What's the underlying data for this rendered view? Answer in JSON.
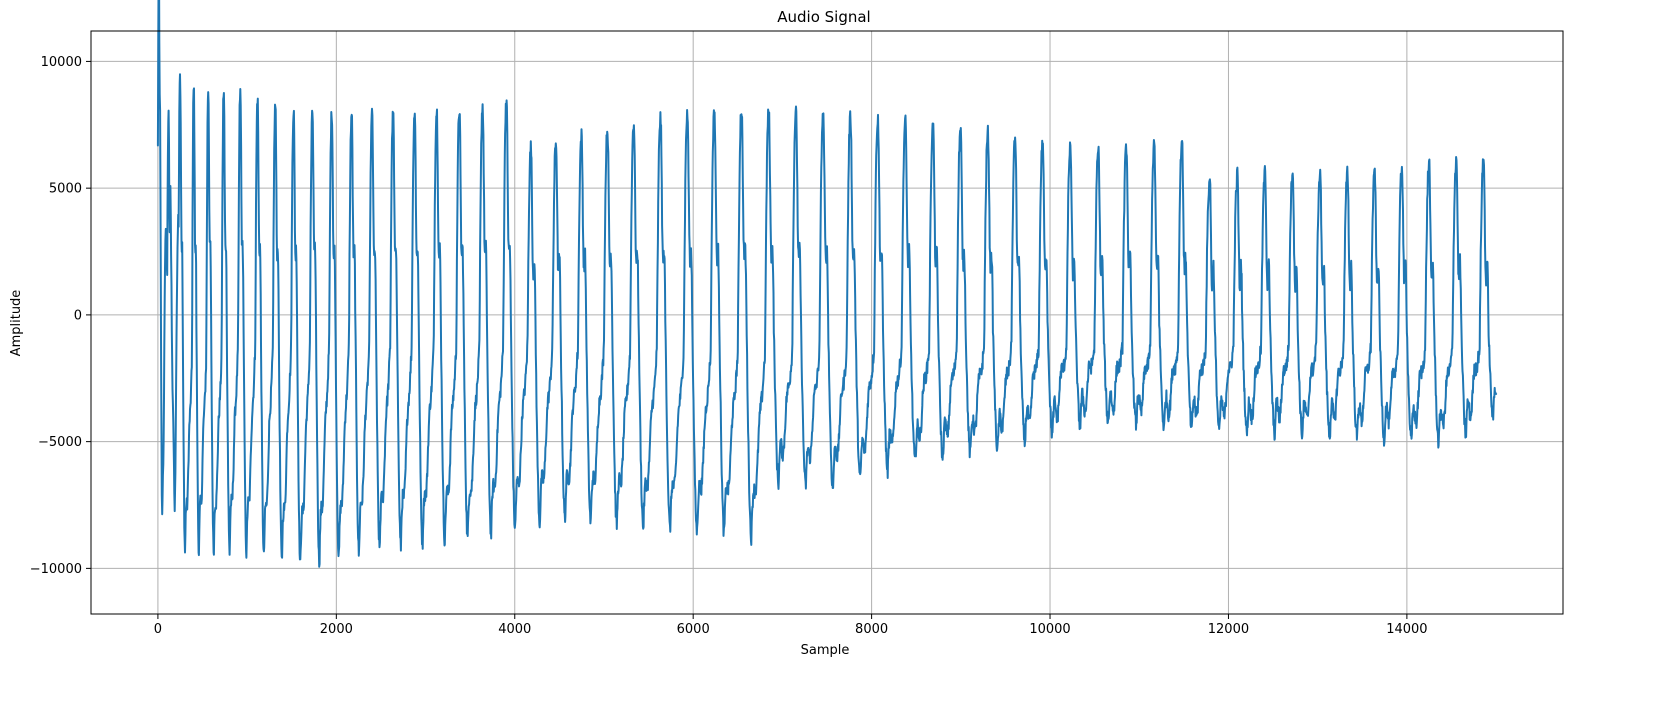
{
  "chart_data": {
    "type": "line",
    "title": "Audio Signal",
    "xlabel": "Sample",
    "ylabel": "Amplitude",
    "xlim": [
      -750,
      15750
    ],
    "ylim": [
      -11800,
      11200
    ],
    "grid": true,
    "x_ticks": [
      0,
      2000,
      4000,
      6000,
      8000,
      10000,
      12000,
      14000
    ],
    "x_tick_labels": [
      "0",
      "2000",
      "4000",
      "6000",
      "8000",
      "10000",
      "12000",
      "14000"
    ],
    "y_ticks": [
      -10000,
      -5000,
      0,
      5000,
      10000
    ],
    "y_tick_labels": [
      "−10000",
      "−5000",
      "0",
      "5000",
      "10000"
    ],
    "colors": {
      "series": "#1f77b4"
    },
    "series": [
      {
        "sample_start": 0,
        "sample_end": 15000,
        "segments": [
          {
            "s": 0,
            "period": 100,
            "peak": 9500,
            "trough": -8000,
            "mid": -500
          },
          {
            "s": 300,
            "period": 150,
            "peak": 9400,
            "trough": -10600,
            "mid": -2000
          },
          {
            "s": 900,
            "period": 190,
            "peak": 8800,
            "trough": -10200,
            "mid": -1300
          },
          {
            "s": 1600,
            "period": 210,
            "peak": 7600,
            "trough": -10400,
            "mid": -1300
          },
          {
            "s": 2500,
            "period": 235,
            "peak": 7200,
            "trough": -9300,
            "mid": -1200
          },
          {
            "s": 3500,
            "period": 260,
            "peak": 7100,
            "trough": -8500,
            "mid": -1300
          },
          {
            "s": 4500,
            "period": 285,
            "peak": 7600,
            "trough": -7500,
            "mid": -1300
          },
          {
            "s": 5500,
            "period": 300,
            "peak": 8300,
            "trough": -7600,
            "mid": -1500
          },
          {
            "s": 6500,
            "period": 305,
            "peak": 8400,
            "trough": -7600,
            "mid": -1500
          },
          {
            "s": 7500,
            "period": 305,
            "peak": 7800,
            "trough": -7900,
            "mid": -1500
          },
          {
            "s": 8500,
            "period": 310,
            "peak": 7200,
            "trough": -6400,
            "mid": -1300
          },
          {
            "s": 9500,
            "period": 305,
            "peak": 6400,
            "trough": -5600,
            "mid": -1300
          },
          {
            "s": 10500,
            "period": 315,
            "peak": 5600,
            "trough": -4300,
            "mid": -1300
          },
          {
            "s": 11500,
            "period": 310,
            "peak": 5800,
            "trough": -4500,
            "mid": -1300
          },
          {
            "s": 12500,
            "period": 310,
            "peak": 6100,
            "trough": -4500,
            "mid": -1300
          },
          {
            "s": 13500,
            "period": 305,
            "peak": 5700,
            "trough": -4500,
            "mid": -1300
          },
          {
            "s": 14500,
            "period": 305,
            "peak": 6100,
            "trough": -4600,
            "mid": -1300
          },
          {
            "s": 15000,
            "period": 305,
            "peak": 6000,
            "trough": -3500,
            "mid": -1300
          }
        ]
      }
    ]
  }
}
